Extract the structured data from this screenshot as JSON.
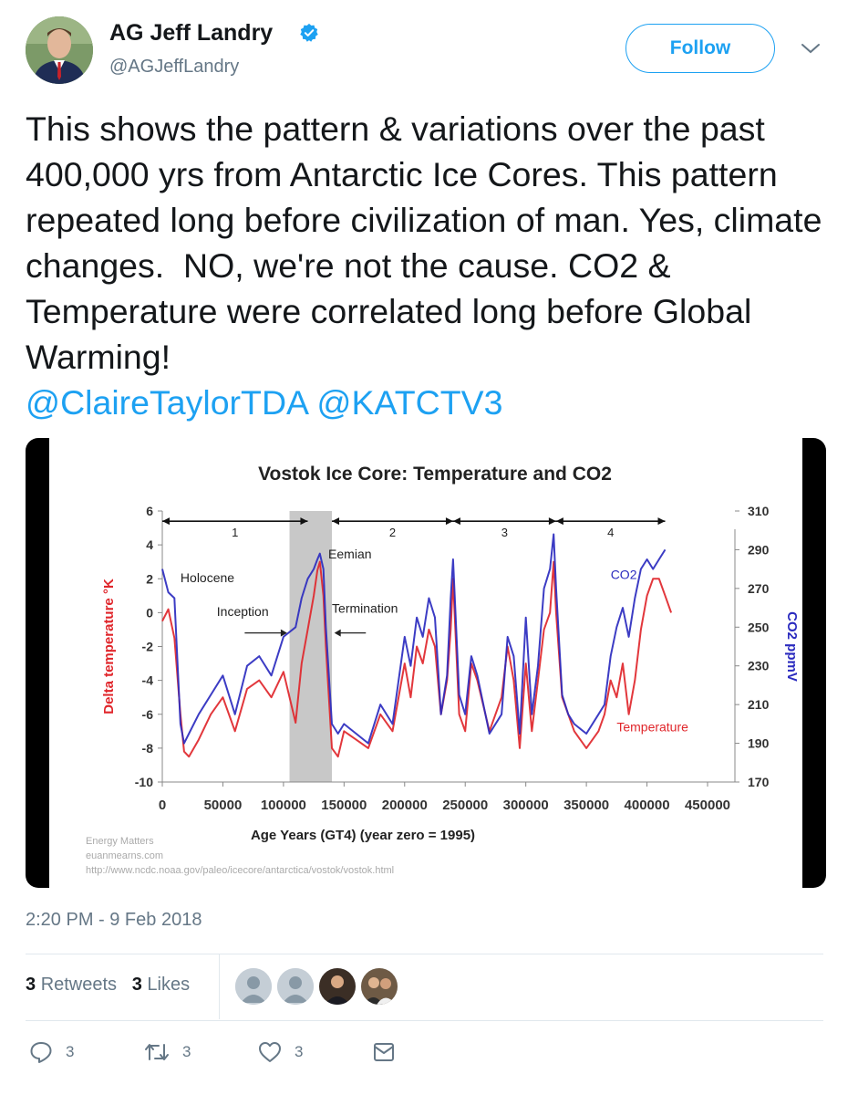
{
  "user": {
    "display_name": "AG Jeff Landry",
    "handle": "@AGJeffLandry",
    "follow_label": "Follow"
  },
  "tweet": {
    "text": "This shows the pattern & variations over the past 400,000 yrs from Antarctic Ice Cores. This pattern repeated long before civilization of man. Yes, climate changes.  NO, we're not the cause. CO2 & Temperature were correlated long before Global Warming!",
    "mentions": "@ClaireTaylorTDA @KATCTV3",
    "timestamp": "2:20 PM - 9 Feb 2018"
  },
  "stats": {
    "retweets_count": "3",
    "retweets_label": "Retweets",
    "likes_count": "3",
    "likes_label": "Likes"
  },
  "actions": {
    "reply_count": "3",
    "retweet_count": "3",
    "like_count": "3"
  },
  "colors": {
    "accent": "#1da1f2",
    "temperature": "#e0262b",
    "co2": "#2b2bbf"
  },
  "chart_data": {
    "type": "line",
    "title": "Vostok Ice Core: Temperature and CO2",
    "xlabel": "Age Years (GT4) (year zero = 1995)",
    "ylabel_left": "Delta temperature °K",
    "ylabel_right": "CO2 ppmV",
    "xlim": [
      0,
      450000
    ],
    "ylim_left": [
      -10,
      6
    ],
    "ylim_right": [
      170,
      310
    ],
    "x_ticks": [
      "0",
      "50000",
      "100000",
      "150000",
      "200000",
      "250000",
      "300000",
      "350000",
      "400000",
      "450000"
    ],
    "y_left_ticks": [
      "6",
      "4",
      "2",
      "0",
      "-2",
      "-4",
      "-6",
      "-8",
      "-10"
    ],
    "y_right_ticks": [
      "310",
      "290",
      "270",
      "250",
      "230",
      "210",
      "190",
      "170"
    ],
    "shaded_region": [
      105000,
      140000
    ],
    "periods": [
      {
        "label": "1",
        "start": 0,
        "end": 120000
      },
      {
        "label": "2",
        "start": 140000,
        "end": 240000
      },
      {
        "label": "3",
        "start": 240000,
        "end": 325000
      },
      {
        "label": "4",
        "start": 325000,
        "end": 415000
      }
    ],
    "annotations": [
      {
        "text": "Holocene",
        "x": 15000,
        "y": 1.8
      },
      {
        "text": "Inception",
        "x": 45000,
        "y": -0.2
      },
      {
        "text": "Eemian",
        "x": 137000,
        "y": 3.2
      },
      {
        "text": "Termination",
        "x": 140000,
        "y": 0
      },
      {
        "text": "CO2",
        "x": 370000,
        "y": 2
      },
      {
        "text": "Temperature",
        "x": 375000,
        "y": -7
      }
    ],
    "credits": [
      "Energy Matters",
      "euanmearns.com",
      "http://www.ncdc.noaa.gov/paleo/icecore/antarctica/vostok/vostok.html"
    ],
    "series": [
      {
        "name": "Temperature",
        "axis": "left",
        "x": [
          0,
          5000,
          10000,
          15000,
          18000,
          22000,
          30000,
          40000,
          50000,
          60000,
          70000,
          80000,
          90000,
          100000,
          110000,
          115000,
          120000,
          125000,
          128000,
          130000,
          133000,
          135000,
          140000,
          145000,
          150000,
          160000,
          170000,
          180000,
          190000,
          200000,
          205000,
          210000,
          215000,
          220000,
          225000,
          230000,
          235000,
          238000,
          240000,
          245000,
          250000,
          255000,
          260000,
          270000,
          280000,
          285000,
          290000,
          295000,
          300000,
          305000,
          310000,
          315000,
          320000,
          323000,
          325000,
          330000,
          335000,
          340000,
          350000,
          360000,
          365000,
          370000,
          375000,
          380000,
          385000,
          390000,
          395000,
          400000,
          405000,
          410000,
          415000,
          420000
        ],
        "y": [
          -0.5,
          0.2,
          -1.5,
          -6,
          -8.2,
          -8.5,
          -7.5,
          -6,
          -5,
          -7,
          -4.5,
          -4,
          -5,
          -3.5,
          -6.5,
          -3,
          -1,
          1,
          2.5,
          3,
          1,
          -2,
          -8,
          -8.5,
          -7,
          -7.5,
          -8,
          -6,
          -7,
          -3,
          -5,
          -2,
          -3,
          -1,
          -2,
          -6,
          -4,
          -1,
          2,
          -6,
          -7,
          -3,
          -4,
          -7,
          -5,
          -2,
          -4,
          -8,
          -3,
          -7,
          -4,
          -1,
          0,
          3,
          0,
          -5,
          -6,
          -7,
          -8,
          -7,
          -6,
          -4,
          -5,
          -3,
          -6,
          -4,
          -1,
          1,
          2,
          2,
          1,
          0
        ]
      },
      {
        "name": "CO2",
        "axis": "right",
        "x": [
          0,
          5000,
          10000,
          15000,
          18000,
          22000,
          30000,
          40000,
          50000,
          60000,
          70000,
          80000,
          90000,
          100000,
          110000,
          115000,
          120000,
          125000,
          128000,
          130000,
          133000,
          135000,
          140000,
          145000,
          150000,
          160000,
          170000,
          180000,
          190000,
          200000,
          205000,
          210000,
          215000,
          220000,
          225000,
          230000,
          235000,
          238000,
          240000,
          245000,
          250000,
          255000,
          260000,
          270000,
          280000,
          285000,
          290000,
          295000,
          300000,
          305000,
          310000,
          315000,
          320000,
          323000,
          325000,
          330000,
          335000,
          340000,
          350000,
          360000,
          365000,
          370000,
          375000,
          380000,
          385000,
          390000,
          395000,
          400000,
          405000,
          410000,
          415000
        ],
        "y": [
          280,
          268,
          265,
          200,
          190,
          195,
          205,
          215,
          225,
          205,
          230,
          235,
          225,
          245,
          250,
          265,
          275,
          280,
          285,
          288,
          280,
          250,
          200,
          195,
          200,
          195,
          190,
          210,
          200,
          245,
          230,
          255,
          245,
          265,
          255,
          205,
          225,
          265,
          285,
          215,
          205,
          235,
          225,
          195,
          205,
          245,
          235,
          195,
          255,
          205,
          230,
          270,
          280,
          298,
          270,
          215,
          205,
          200,
          195,
          205,
          210,
          235,
          250,
          260,
          245,
          265,
          280,
          285,
          280,
          285,
          290
        ]
      }
    ]
  }
}
